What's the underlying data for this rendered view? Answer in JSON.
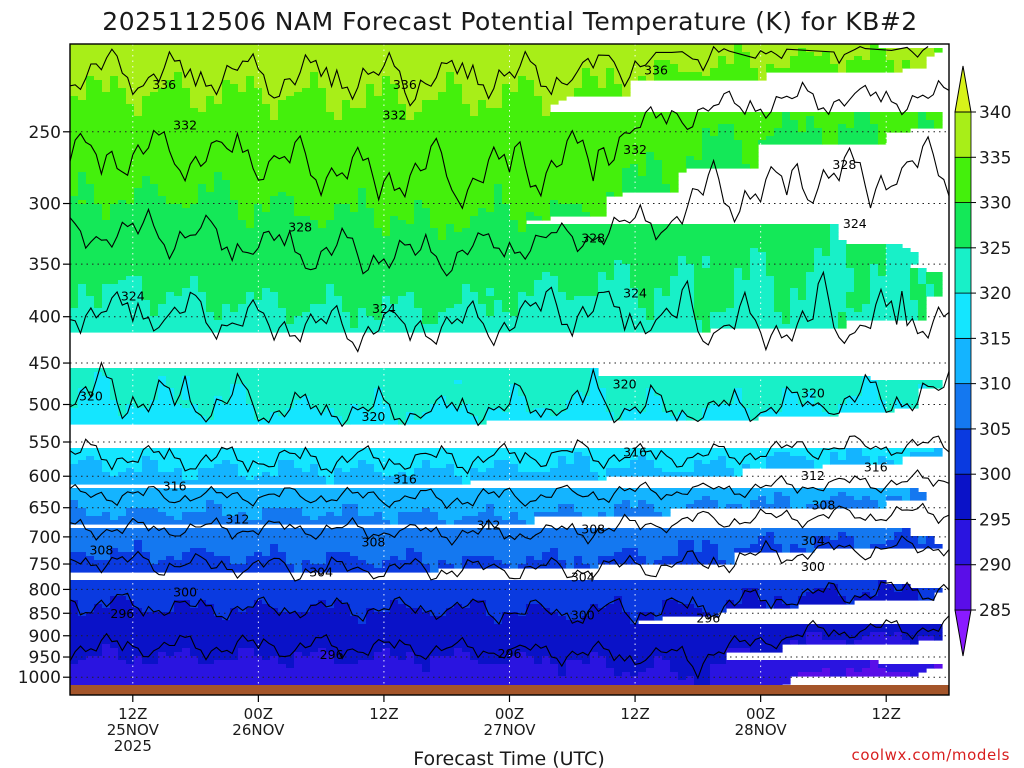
{
  "chart_data": {
    "type": "heatmap",
    "title": "2025112506 NAM Forecast Potential Temperature (K) for KB#2",
    "xlabel": "Forecast Time (UTC)",
    "ylabel": "",
    "y_axis": {
      "scale": "log",
      "reversed": true,
      "ylim": [
        1020,
        200
      ],
      "ticks": [
        250,
        300,
        350,
        400,
        450,
        500,
        550,
        600,
        650,
        700,
        750,
        800,
        850,
        900,
        950,
        1000
      ]
    },
    "x_axis": {
      "xlim_hours": [
        6,
        90
      ],
      "ticks": [
        {
          "hour": 12,
          "lines": [
            "12Z",
            "25NOV",
            "2025"
          ]
        },
        {
          "hour": 24,
          "lines": [
            "00Z",
            "26NOV"
          ]
        },
        {
          "hour": 36,
          "lines": [
            "12Z"
          ]
        },
        {
          "hour": 48,
          "lines": [
            "00Z",
            "27NOV"
          ]
        },
        {
          "hour": 60,
          "lines": [
            "12Z"
          ]
        },
        {
          "hour": 72,
          "lines": [
            "00Z",
            "28NOV"
          ]
        },
        {
          "hour": 84,
          "lines": [
            "12Z"
          ]
        }
      ]
    },
    "grid": true,
    "legend": "right",
    "colorbar": {
      "levels": [
        285,
        290,
        295,
        300,
        305,
        310,
        315,
        320,
        325,
        330,
        335,
        340
      ],
      "labels": [
        "285",
        "290",
        "295",
        "300",
        "305",
        "310",
        "315",
        "320",
        "325",
        "330",
        "335",
        "340"
      ],
      "colors": [
        "#8a1aff",
        "#5a0ee8",
        "#2a14e0",
        "#0a12c8",
        "#0a3ae0",
        "#1478f0",
        "#14b4ff",
        "#14e6ff",
        "#18f0c8",
        "#14e858",
        "#44f00c",
        "#a8ee18",
        "#d8f21a"
      ]
    },
    "contour_levels": [
      296,
      300,
      304,
      308,
      312,
      316,
      320,
      324,
      328,
      332,
      336
    ],
    "profile": {
      "hours": [
        6,
        18,
        30,
        42,
        54,
        66,
        78,
        90
      ],
      "pressures": [
        1000,
        950,
        900,
        850,
        800,
        750,
        700,
        650,
        600,
        550,
        500,
        450,
        400,
        350,
        300,
        250,
        200
      ],
      "theta": [
        [
          293,
          292.5,
          293,
          293,
          293.5,
          295,
          289,
          289
        ],
        [
          295,
          295,
          295,
          295,
          295.5,
          296,
          292,
          291.5
        ],
        [
          297,
          297,
          297,
          297.5,
          298,
          298,
          295.5,
          295
        ],
        [
          299,
          299.5,
          299.5,
          299.5,
          300,
          299.5,
          298,
          297.5
        ],
        [
          301,
          302,
          302,
          302,
          302,
          301.5,
          300.5,
          300
        ],
        [
          303.5,
          304,
          304.5,
          304.5,
          304.5,
          304,
          302.5,
          302
        ],
        [
          307,
          307,
          307,
          307.5,
          307.5,
          306,
          305.5,
          305
        ],
        [
          310.5,
          310.5,
          310.5,
          311,
          310.5,
          309.5,
          309,
          308.5
        ],
        [
          314,
          314.5,
          314.5,
          314.5,
          314,
          314,
          313,
          312.5
        ],
        [
          317,
          317.5,
          317.5,
          317.5,
          317,
          317.5,
          316.5,
          316.5
        ],
        [
          319.5,
          320,
          320.5,
          320.5,
          320,
          320.5,
          320,
          319.5
        ],
        [
          321,
          321.5,
          322,
          322,
          321.5,
          322,
          322,
          321.5
        ],
        [
          323.5,
          324,
          324.5,
          324.5,
          323.5,
          324.5,
          324.5,
          324
        ],
        [
          326,
          326.5,
          327.5,
          327.5,
          326,
          325.5,
          325,
          325
        ],
        [
          330,
          329.5,
          330.5,
          331,
          330.5,
          328,
          327,
          326.5
        ],
        [
          333,
          333,
          333.5,
          333.5,
          333,
          330.5,
          329.5,
          329.5
        ],
        [
          337.5,
          337.5,
          337.5,
          337.5,
          337.5,
          336.5,
          336,
          336
        ]
      ]
    },
    "contour_annotations": [
      {
        "value": "336",
        "hour": 15,
        "p": 222
      },
      {
        "value": "336",
        "hour": 38,
        "p": 222
      },
      {
        "value": "336",
        "hour": 62,
        "p": 214
      },
      {
        "value": "332",
        "hour": 17,
        "p": 246
      },
      {
        "value": "332",
        "hour": 37,
        "p": 240
      },
      {
        "value": "332",
        "hour": 60,
        "p": 262
      },
      {
        "value": "328",
        "hour": 80,
        "p": 272
      },
      {
        "value": "328",
        "hour": 28,
        "p": 319
      },
      {
        "value": "328",
        "hour": 56,
        "p": 328
      },
      {
        "value": "324",
        "hour": 81,
        "p": 316
      },
      {
        "value": "324",
        "hour": 12,
        "p": 380
      },
      {
        "value": "324",
        "hour": 36,
        "p": 392
      },
      {
        "value": "324",
        "hour": 60,
        "p": 377
      },
      {
        "value": "320",
        "hour": 8,
        "p": 490
      },
      {
        "value": "320",
        "hour": 35,
        "p": 516
      },
      {
        "value": "320",
        "hour": 59,
        "p": 475
      },
      {
        "value": "320",
        "hour": 77,
        "p": 486
      },
      {
        "value": "316",
        "hour": 60,
        "p": 565
      },
      {
        "value": "316",
        "hour": 83,
        "p": 587
      },
      {
        "value": "316",
        "hour": 16,
        "p": 616
      },
      {
        "value": "316",
        "hour": 38,
        "p": 605
      },
      {
        "value": "312",
        "hour": 77,
        "p": 600
      },
      {
        "value": "308",
        "hour": 78,
        "p": 646
      },
      {
        "value": "312",
        "hour": 22,
        "p": 670
      },
      {
        "value": "312",
        "hour": 46,
        "p": 680
      },
      {
        "value": "308",
        "hour": 56,
        "p": 687
      },
      {
        "value": "308",
        "hour": 35,
        "p": 710
      },
      {
        "value": "304",
        "hour": 77,
        "p": 707
      },
      {
        "value": "308",
        "hour": 9,
        "p": 725
      },
      {
        "value": "304",
        "hour": 30,
        "p": 766
      },
      {
        "value": "304",
        "hour": 55,
        "p": 776
      },
      {
        "value": "300",
        "hour": 77,
        "p": 756
      },
      {
        "value": "300",
        "hour": 17,
        "p": 806
      },
      {
        "value": "300",
        "hour": 55,
        "p": 855
      },
      {
        "value": "296",
        "hour": 11,
        "p": 852
      },
      {
        "value": "296",
        "hour": 67,
        "p": 861
      },
      {
        "value": "296",
        "hour": 31,
        "p": 945
      },
      {
        "value": "296",
        "hour": 48,
        "p": 943
      }
    ]
  },
  "credit": "coolwx.com/models"
}
